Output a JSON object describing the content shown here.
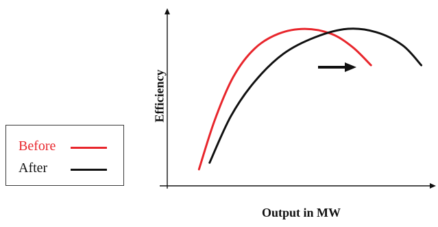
{
  "chart_data": {
    "type": "line",
    "title": "",
    "xlabel": "Output in MW",
    "ylabel": "Efficiency",
    "xlim": [
      0,
      100
    ],
    "ylim": [
      0,
      100
    ],
    "grid": false,
    "legend_position": "left",
    "shift_arrow": "right",
    "series": [
      {
        "name": "Before",
        "color": "#e8262c",
        "points": [
          [
            12,
            10
          ],
          [
            18,
            40
          ],
          [
            25,
            66
          ],
          [
            33,
            83
          ],
          [
            42,
            92
          ],
          [
            52,
            95
          ],
          [
            62,
            92
          ],
          [
            70,
            84
          ],
          [
            77,
            73
          ]
        ]
      },
      {
        "name": "After",
        "color": "#111111",
        "points": [
          [
            16,
            14
          ],
          [
            24,
            42
          ],
          [
            33,
            63
          ],
          [
            44,
            80
          ],
          [
            56,
            90
          ],
          [
            68,
            95
          ],
          [
            79,
            93
          ],
          [
            89,
            85
          ],
          [
            96,
            73
          ]
        ]
      }
    ]
  }
}
